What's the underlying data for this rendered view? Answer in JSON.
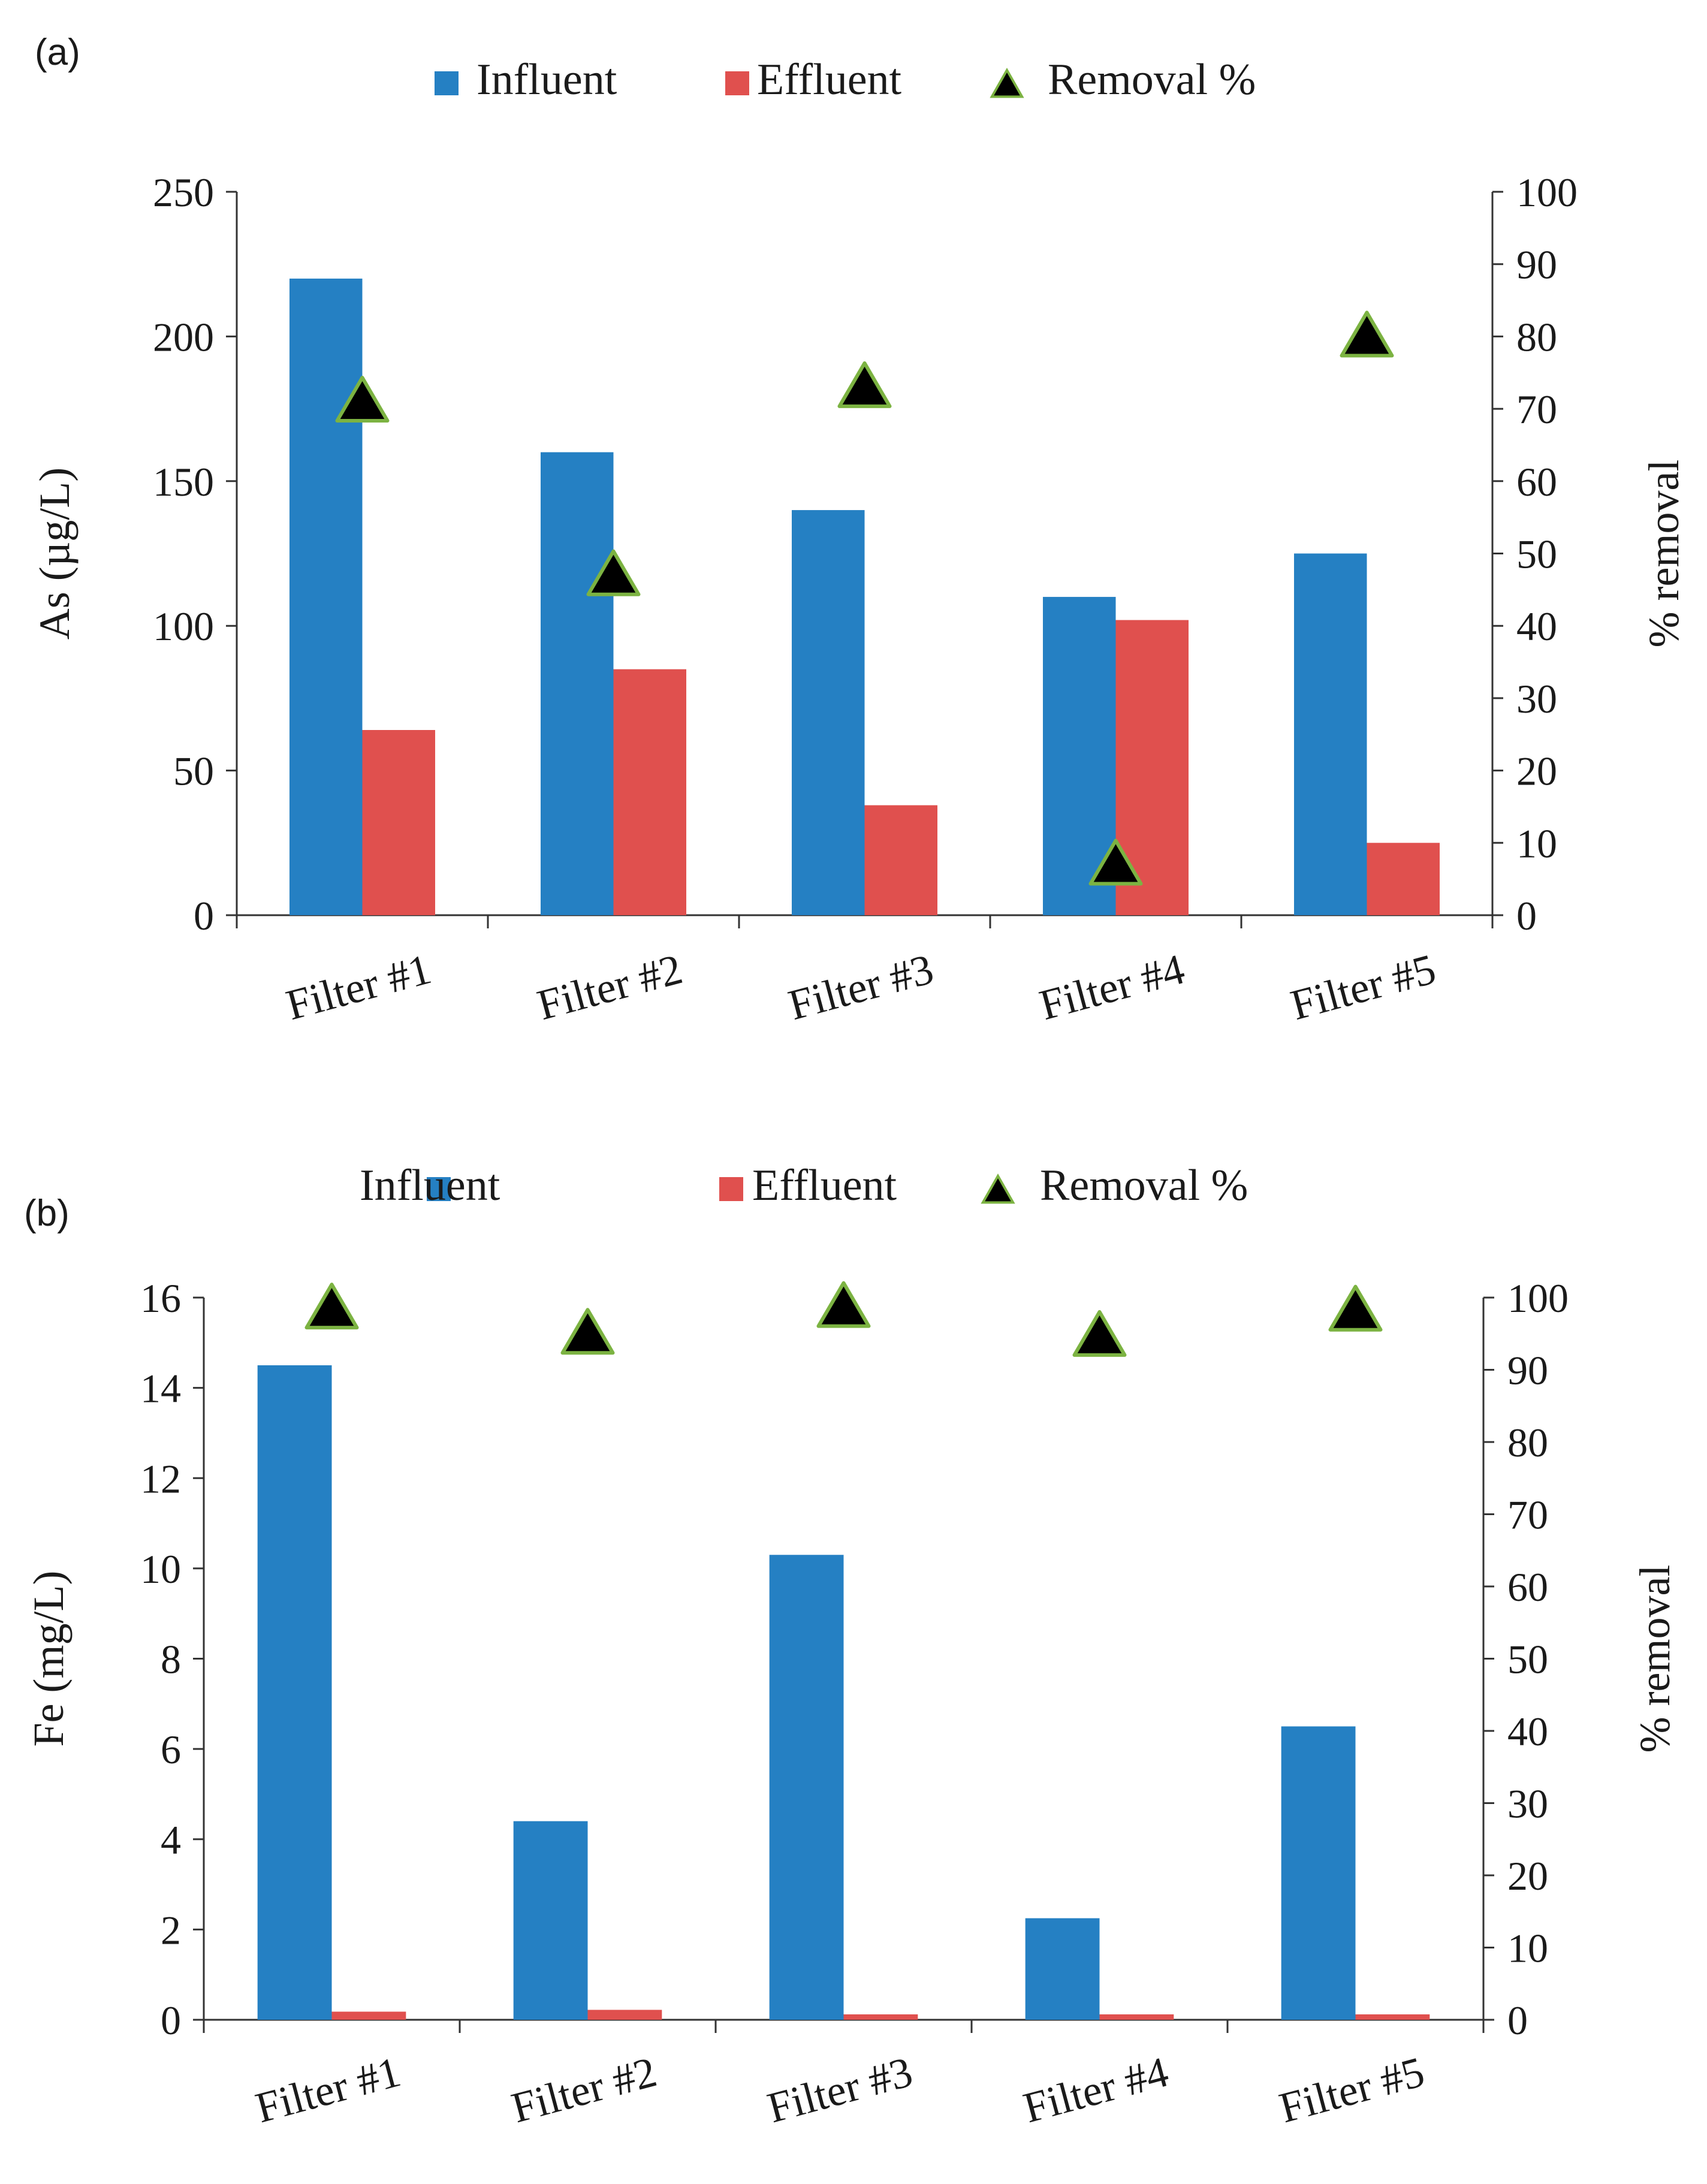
{
  "colors": {
    "influent": "#2580C3",
    "effluent": "#E0504E",
    "marker_fill": "#000000",
    "marker_stroke": "#7CB342",
    "axis": "#333333",
    "text": "#1a1a1a"
  },
  "chart_data": [
    {
      "type": "bar",
      "panel_label": "(a)",
      "categories": [
        "Filter #1",
        "Filter #2",
        "Filter #3",
        "Filter #4",
        "Filter #5"
      ],
      "series": [
        {
          "name": "Influent",
          "values": [
            220,
            160,
            140,
            110,
            125
          ]
        },
        {
          "name": "Effluent",
          "values": [
            64,
            85,
            38,
            102,
            25
          ]
        }
      ],
      "secondary_series": {
        "name": "Removal %",
        "type": "scatter",
        "marker": "triangle",
        "values": [
          71,
          47,
          73,
          7,
          80
        ]
      },
      "ylabel": "As (µg/L)",
      "y2label": "% removal",
      "ylim": [
        0,
        250
      ],
      "y2lim": [
        0,
        100
      ],
      "yticks": [
        "0",
        "50",
        "100",
        "150",
        "200",
        "250"
      ],
      "y2ticks": [
        "0",
        "10",
        "20",
        "30",
        "40",
        "50",
        "60",
        "70",
        "80",
        "90",
        "100"
      ],
      "legend": [
        "Influent",
        "Effluent",
        "Removal %"
      ],
      "legend_position": "top-center",
      "grid": false
    },
    {
      "type": "bar",
      "panel_label": "(b)",
      "categories": [
        "Filter #1",
        "Filter #2",
        "Filter #3",
        "Filter #4",
        "Filter #5"
      ],
      "series": [
        {
          "name": "Influent",
          "values": [
            14.5,
            4.4,
            10.3,
            2.25,
            6.5
          ]
        },
        {
          "name": "Effluent",
          "values": [
            0.18,
            0.22,
            0.12,
            0.12,
            0.12
          ]
        }
      ],
      "secondary_series": {
        "name": "Removal %",
        "type": "scatter",
        "marker": "triangle",
        "values": [
          98.5,
          95,
          98.7,
          94.7,
          98.2
        ]
      },
      "ylabel": "Fe  (mg/L)",
      "y2label": "% removal",
      "ylim": [
        0,
        16
      ],
      "y2lim": [
        0,
        100
      ],
      "yticks": [
        "0",
        "2",
        "4",
        "6",
        "8",
        "10",
        "12",
        "14",
        "16"
      ],
      "y2ticks": [
        "0",
        "10",
        "20",
        "30",
        "40",
        "50",
        "60",
        "70",
        "80",
        "90",
        "100"
      ],
      "legend": [
        "Influent",
        "Effluent",
        "Removal %"
      ],
      "legend_position": "top-center",
      "grid": false
    }
  ]
}
